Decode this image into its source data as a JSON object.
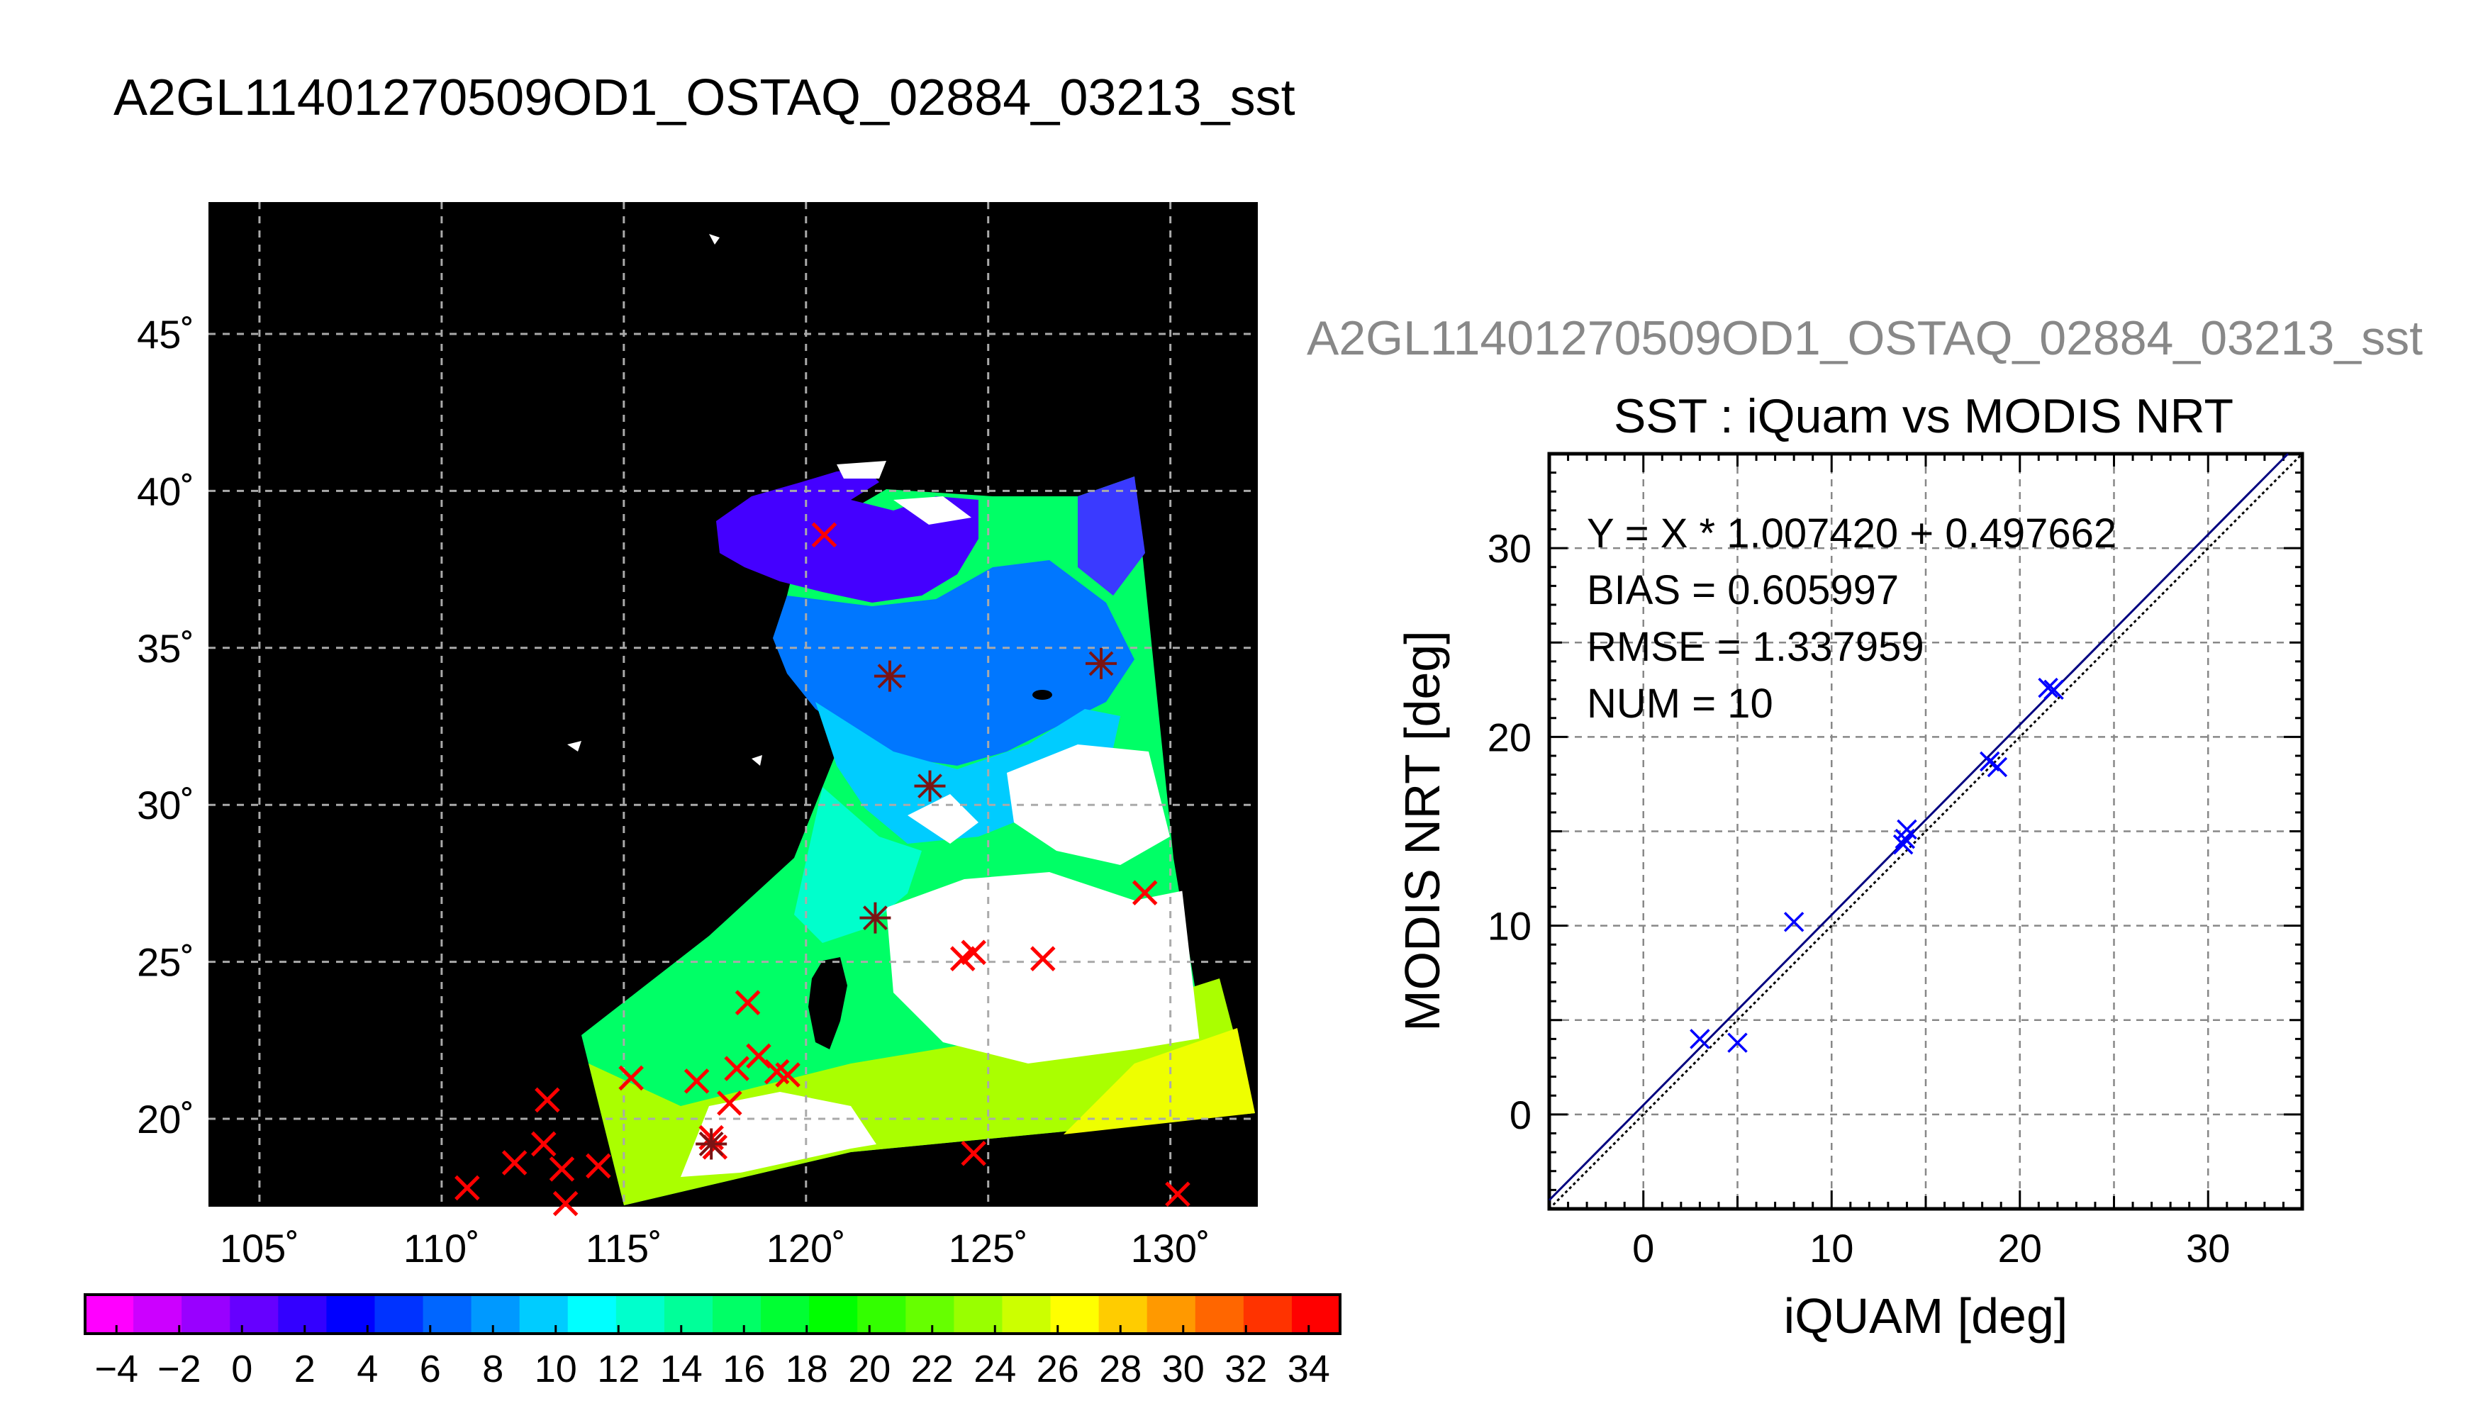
{
  "title": "A2GL11401270509OD1_OSTAQ_02884_03213_sst",
  "map": {
    "lon_ticks": [
      "105˚",
      "110˚",
      "115˚",
      "120˚",
      "125˚",
      "130˚"
    ],
    "lat_ticks": [
      "45˚",
      "40˚",
      "35˚",
      "30˚",
      "25˚",
      "20˚"
    ],
    "lon_range": [
      103.6,
      132.4
    ],
    "lat_range": [
      17.2,
      49.2
    ],
    "background_color": "#000000",
    "grid_color": "#aaaaaa",
    "marker_red": "#ff0000",
    "marker_star": "#7a1414",
    "red_markers": [
      [
        110.7,
        17.8
      ],
      [
        112.0,
        18.6
      ],
      [
        112.8,
        19.2
      ],
      [
        113.3,
        18.4
      ],
      [
        113.4,
        17.3
      ],
      [
        114.3,
        18.5
      ],
      [
        112.9,
        20.6
      ],
      [
        115.2,
        21.3
      ],
      [
        117.0,
        21.2
      ],
      [
        117.4,
        19.4
      ],
      [
        117.5,
        19.1
      ],
      [
        117.9,
        20.5
      ],
      [
        118.1,
        21.6
      ],
      [
        118.4,
        23.7
      ],
      [
        118.7,
        22.0
      ],
      [
        119.2,
        21.5
      ],
      [
        119.5,
        21.4
      ],
      [
        120.5,
        38.6
      ],
      [
        124.3,
        25.1
      ],
      [
        124.6,
        25.3
      ],
      [
        124.6,
        18.9
      ],
      [
        126.5,
        25.1
      ],
      [
        129.3,
        27.2
      ],
      [
        130.2,
        17.6
      ]
    ],
    "star_markers": [
      [
        122.3,
        34.1
      ],
      [
        123.4,
        30.6
      ],
      [
        121.9,
        26.4
      ],
      [
        128.1,
        34.5
      ],
      [
        117.4,
        19.2
      ]
    ]
  },
  "colorbar": {
    "tick_labels": [
      "−4",
      "−2",
      "0",
      "2",
      "4",
      "6",
      "8",
      "10",
      "12",
      "14",
      "16",
      "18",
      "20",
      "22",
      "24",
      "26",
      "28",
      "30",
      "32",
      "34"
    ],
    "min": -5,
    "max": 35,
    "step": 2,
    "colors": [
      "#ff00ff",
      "#cc00ff",
      "#9900ff",
      "#6600ff",
      "#3300ff",
      "#0000ff",
      "#0033ff",
      "#0066ff",
      "#0099ff",
      "#00ccff",
      "#00ffff",
      "#00ffcc",
      "#00ff99",
      "#00ff66",
      "#00ff33",
      "#00ff00",
      "#33ff00",
      "#66ff00",
      "#99ff00",
      "#ccff00",
      "#ffff00",
      "#ffcc00",
      "#ff9900",
      "#ff6600",
      "#ff3300",
      "#ff0000"
    ]
  },
  "chart_data": {
    "type": "scatter",
    "file_label": "A2GL11401270509OD1_OSTAQ_02884_03213_sst",
    "title": "SST : iQuam vs MODIS NRT",
    "xlabel": "iQUAM [deg]",
    "ylabel": "MODIS NRT [deg]",
    "xlim": [
      -5,
      35
    ],
    "ylim": [
      -5,
      35
    ],
    "xticks": [
      0,
      10,
      20,
      30
    ],
    "yticks": [
      0,
      10,
      20,
      30
    ],
    "grid": true,
    "marker_color": "#0000ff",
    "fit_line_color": "#000080",
    "stats": [
      "Y = X * 1.007420 + 0.497662",
      "BIAS = 0.605997",
      "RMSE = 1.337959",
      "NUM = 10"
    ],
    "fit": {
      "slope": 1.00742,
      "intercept": 0.497662
    },
    "points": [
      {
        "x": 3.0,
        "y": 4.0
      },
      {
        "x": 5.0,
        "y": 3.8
      },
      {
        "x": 8.0,
        "y": 10.2
      },
      {
        "x": 13.8,
        "y": 14.3
      },
      {
        "x": 14.0,
        "y": 15.1
      },
      {
        "x": 18.4,
        "y": 18.7
      },
      {
        "x": 18.8,
        "y": 18.4
      },
      {
        "x": 21.5,
        "y": 22.6
      },
      {
        "x": 21.8,
        "y": 22.5
      },
      {
        "x": 13.9,
        "y": 14.6
      }
    ]
  }
}
